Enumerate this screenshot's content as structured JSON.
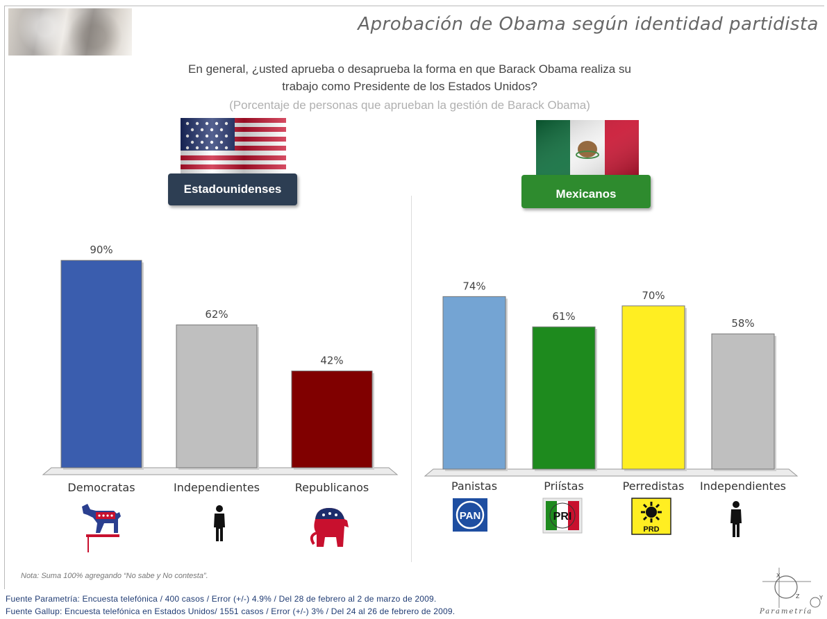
{
  "header": {
    "title": "Aprobación de Obama según identidad  partidista"
  },
  "question": {
    "line1": "En general, ¿usted aprueba o desaprueba la forma en que Barack Obama realiza su",
    "line2": "trabajo como Presidente de los Estados Unidos?",
    "line3": "(Porcentaje de personas que aprueban la gestión de Barack Obama)"
  },
  "colors": {
    "us_label_bg": "#2d3e53",
    "mx_label_bg": "#2e8b2e"
  },
  "chart_data": [
    {
      "type": "bar",
      "label": "Estadounidenses",
      "categories": [
        "Democratas",
        "Independientes",
        "Republicanos"
      ],
      "values": [
        90,
        62,
        42
      ],
      "value_labels": [
        "90%",
        "62%",
        "42%"
      ],
      "colors": [
        "#3a5dae",
        "#bfbfbf",
        "#800000"
      ],
      "icons": [
        "democrat-donkey-icon",
        "person-icon",
        "republican-elephant-icon"
      ],
      "ylim": [
        0,
        100
      ],
      "grid": false
    },
    {
      "type": "bar",
      "label": "Mexicanos",
      "categories": [
        "Panistas",
        "Priístas",
        "Perredistas",
        "Independientes"
      ],
      "values": [
        74,
        61,
        70,
        58
      ],
      "value_labels": [
        "74%",
        "61%",
        "70%",
        "58%"
      ],
      "colors": [
        "#74a4d3",
        "#1e8a1e",
        "#ffee22",
        "#bfbfbf"
      ],
      "icons": [
        "pan-logo-icon",
        "pri-logo-icon",
        "prd-logo-icon",
        "person-icon"
      ],
      "icon_texts": [
        "PAN",
        "PRI",
        "PRD"
      ],
      "ylim": [
        0,
        100
      ],
      "grid": false
    }
  ],
  "footer": {
    "note": "Nota: Suma 100% agregando  “No sabe y No contesta”.",
    "source1": "Fuente Parametría: Encuesta telefónica / 400 casos / Error (+/-) 4.9% / Del 28 de febrero al 2 de marzo de 2009.",
    "source2": "Fuente Gallup: Encuesta telefónica en Estados Unidos/ 1551 casos / Error (+/-) 3% / Del 24 al 26 de febrero de 2009.",
    "logo_text": "Parametría",
    "logo_axes": [
      "X",
      "Z",
      "Y"
    ]
  }
}
